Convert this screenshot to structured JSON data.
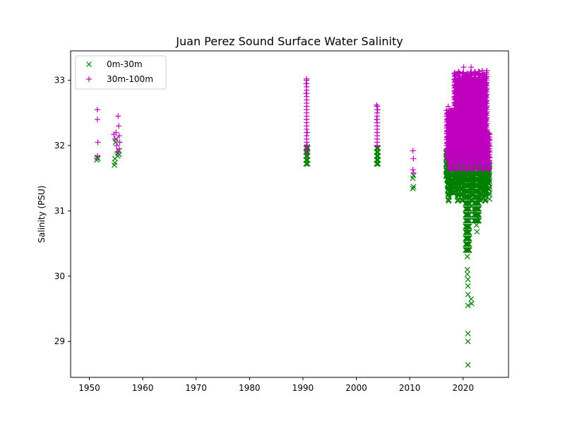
{
  "chart_data": {
    "type": "scatter",
    "title": "Juan Perez Sound Surface Water Salinity",
    "xlabel": "",
    "ylabel": "Salinity (PSU)",
    "xlim": [
      1946.5,
      2028.5
    ],
    "ylim": [
      28.45,
      33.45
    ],
    "xticks": [
      1950,
      1960,
      1970,
      1980,
      1990,
      2000,
      2010,
      2020
    ],
    "yticks": [
      29,
      30,
      31,
      32,
      33
    ],
    "grid": false,
    "legend_position": "top-left",
    "series": [
      {
        "name": "0m-30m",
        "marker": "x",
        "color": "#008000",
        "points": [
          [
            1951.4,
            31.78
          ],
          [
            1951.5,
            31.82
          ],
          [
            1951.6,
            31.8
          ],
          [
            1954.7,
            31.7
          ],
          [
            1954.8,
            31.74
          ],
          [
            1954.8,
            31.8
          ],
          [
            1954.9,
            32.05
          ],
          [
            1955.0,
            32.1
          ],
          [
            1955.3,
            31.84
          ],
          [
            1955.4,
            31.88
          ],
          [
            1955.5,
            31.92
          ],
          [
            1955.6,
            31.86
          ],
          [
            1990.6,
            31.72
          ],
          [
            1990.6,
            31.78
          ],
          [
            1990.7,
            31.84
          ],
          [
            1990.7,
            31.9
          ],
          [
            1990.8,
            31.95
          ],
          [
            1990.8,
            31.98
          ],
          [
            2003.8,
            31.72
          ],
          [
            2003.8,
            31.78
          ],
          [
            2003.9,
            31.84
          ],
          [
            2003.9,
            31.9
          ],
          [
            2004.0,
            31.96
          ],
          [
            2010.6,
            31.34
          ],
          [
            2010.7,
            31.37
          ],
          [
            2010.6,
            31.5
          ],
          [
            2010.7,
            31.54
          ],
          [
            2017.0,
            31.55
          ],
          [
            2017.2,
            31.62
          ],
          [
            2017.4,
            31.5
          ],
          [
            2017.6,
            31.68
          ],
          [
            2017.8,
            31.45
          ],
          [
            2018.0,
            31.32
          ],
          [
            2018.2,
            31.4
          ],
          [
            2018.5,
            31.55
          ],
          [
            2018.8,
            31.62
          ],
          [
            2019.0,
            31.7
          ],
          [
            2019.3,
            31.58
          ],
          [
            2019.6,
            31.75
          ],
          [
            2019.9,
            31.8
          ],
          [
            2020.2,
            31.6
          ],
          [
            2020.4,
            31.4
          ],
          [
            2020.5,
            31.2
          ],
          [
            2020.6,
            30.95
          ],
          [
            2020.7,
            30.7
          ],
          [
            2020.7,
            30.5
          ],
          [
            2020.8,
            30.3
          ],
          [
            2020.8,
            30.1
          ],
          [
            2020.8,
            30.03
          ],
          [
            2020.9,
            29.95
          ],
          [
            2020.9,
            29.85
          ],
          [
            2020.9,
            29.72
          ],
          [
            2020.9,
            29.55
          ],
          [
            2020.9,
            29.12
          ],
          [
            2020.9,
            29.0
          ],
          [
            2020.9,
            28.64
          ],
          [
            2021.1,
            30.85
          ],
          [
            2021.2,
            31.1
          ],
          [
            2021.4,
            31.35
          ],
          [
            2021.5,
            29.65
          ],
          [
            2021.6,
            29.58
          ],
          [
            2021.8,
            31.45
          ],
          [
            2022.2,
            31.0
          ],
          [
            2022.4,
            30.85
          ],
          [
            2022.5,
            30.78
          ],
          [
            2022.6,
            30.68
          ],
          [
            2022.8,
            30.9
          ],
          [
            2023.0,
            31.2
          ],
          [
            2023.3,
            31.5
          ],
          [
            2023.6,
            31.4
          ],
          [
            2023.9,
            31.33
          ],
          [
            2024.2,
            31.6
          ],
          [
            2024.5,
            31.72
          ],
          [
            2024.8,
            31.8
          ]
        ]
      },
      {
        "name": "30m-100m",
        "marker": "+",
        "color": "#bf00bf",
        "points": [
          [
            1951.5,
            32.55
          ],
          [
            1951.5,
            32.4
          ],
          [
            1951.6,
            32.05
          ],
          [
            1951.5,
            31.84
          ],
          [
            1954.6,
            32.17
          ],
          [
            1954.8,
            32.1
          ],
          [
            1955.0,
            32.2
          ],
          [
            1955.1,
            32.0
          ],
          [
            1955.2,
            31.9
          ],
          [
            1955.4,
            32.45
          ],
          [
            1955.5,
            32.3
          ],
          [
            1955.6,
            32.15
          ],
          [
            1955.7,
            32.05
          ],
          [
            1955.6,
            31.95
          ],
          [
            1990.6,
            32.95
          ],
          [
            1990.6,
            32.8
          ],
          [
            1990.7,
            32.6
          ],
          [
            1990.7,
            32.4
          ],
          [
            1990.8,
            32.2
          ],
          [
            1990.8,
            32.0
          ],
          [
            1990.7,
            33.02
          ],
          [
            2003.8,
            32.62
          ],
          [
            2003.8,
            32.4
          ],
          [
            2003.9,
            32.2
          ],
          [
            2003.9,
            32.0
          ],
          [
            2004.0,
            32.55
          ],
          [
            2010.6,
            31.92
          ],
          [
            2010.7,
            31.8
          ],
          [
            2010.6,
            31.63
          ],
          [
            2010.7,
            31.58
          ],
          [
            2017.2,
            32.6
          ],
          [
            2017.4,
            32.3
          ],
          [
            2017.7,
            32.0
          ],
          [
            2018.0,
            31.8
          ],
          [
            2018.3,
            32.4
          ],
          [
            2018.6,
            32.9
          ],
          [
            2018.9,
            33.1
          ],
          [
            2019.2,
            32.7
          ],
          [
            2019.5,
            32.4
          ],
          [
            2019.8,
            33.0
          ],
          [
            2020.1,
            33.2
          ],
          [
            2020.3,
            32.8
          ],
          [
            2020.6,
            32.5
          ],
          [
            2020.9,
            32.2
          ],
          [
            2021.2,
            33.05
          ],
          [
            2021.5,
            33.2
          ],
          [
            2021.8,
            32.7
          ],
          [
            2022.1,
            32.4
          ],
          [
            2022.4,
            33.0
          ],
          [
            2022.7,
            32.6
          ],
          [
            2023.0,
            33.1
          ],
          [
            2023.3,
            32.85
          ],
          [
            2023.6,
            33.15
          ],
          [
            2023.9,
            32.5
          ],
          [
            2024.2,
            32.2
          ],
          [
            2024.5,
            32.0
          ],
          [
            2024.8,
            32.1
          ]
        ],
        "dense_bands": [
          {
            "x": [
              2016.8,
              2025.0
            ],
            "y_low": 31.6,
            "y_high": 33.2
          }
        ]
      }
    ]
  }
}
